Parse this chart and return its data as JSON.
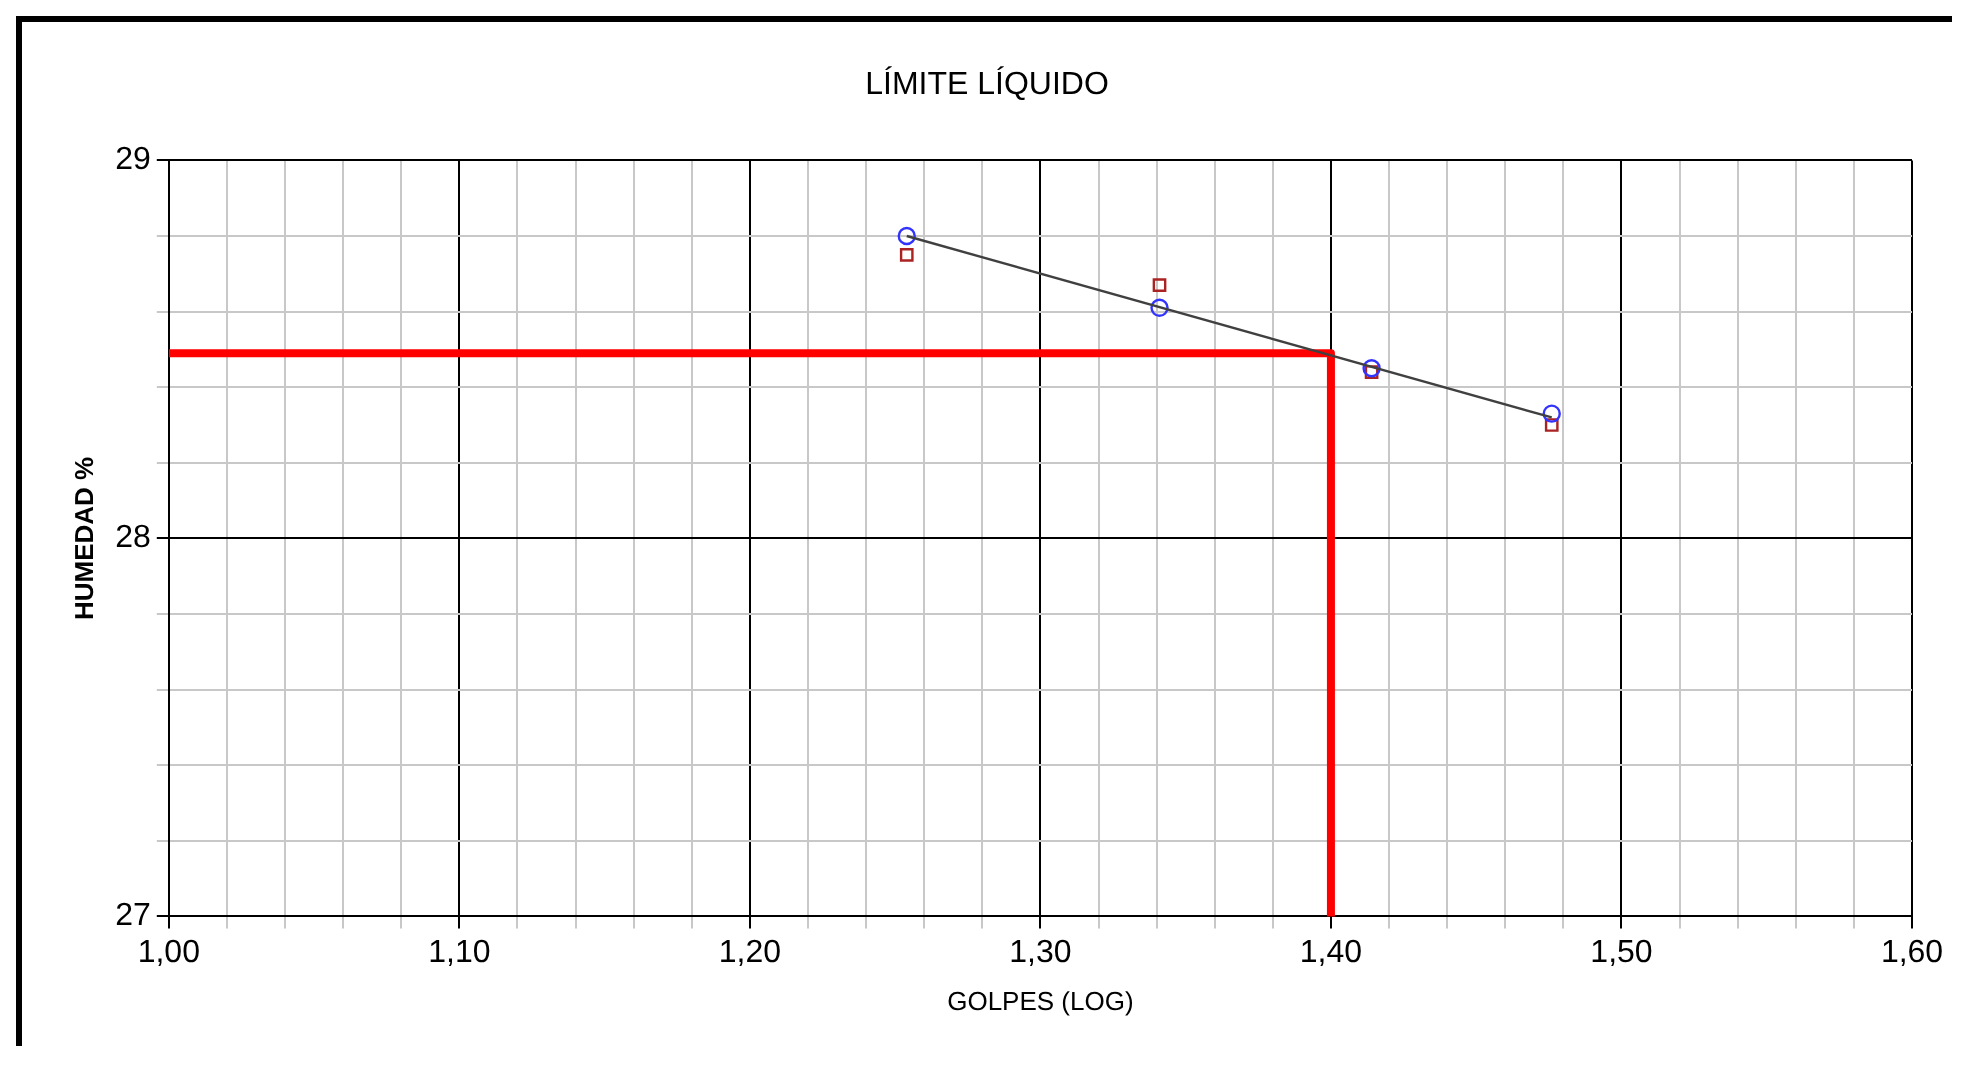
{
  "chart_data": {
    "type": "scatter",
    "title": "LÍMITE LÍQUIDO",
    "xlabel": "GOLPES (LOG)",
    "ylabel": "HUMEDAD %",
    "xlim": [
      1.0,
      1.6
    ],
    "xticks": [
      {
        "value": 1.0,
        "label": "1,00"
      },
      {
        "value": 1.02,
        "label": null
      },
      {
        "value": 1.04,
        "label": null
      },
      {
        "value": 1.06,
        "label": null
      },
      {
        "value": 1.08,
        "label": null
      },
      {
        "value": 1.1,
        "label": "1,10"
      },
      {
        "value": 1.12,
        "label": null
      },
      {
        "value": 1.14,
        "label": null
      },
      {
        "value": 1.16,
        "label": null
      },
      {
        "value": 1.18,
        "label": null
      },
      {
        "value": 1.2,
        "label": "1,20"
      },
      {
        "value": 1.22,
        "label": null
      },
      {
        "value": 1.24,
        "label": null
      },
      {
        "value": 1.26,
        "label": null
      },
      {
        "value": 1.28,
        "label": null
      },
      {
        "value": 1.3,
        "label": "1,30"
      },
      {
        "value": 1.32,
        "label": null
      },
      {
        "value": 1.34,
        "label": null
      },
      {
        "value": 1.36,
        "label": null
      },
      {
        "value": 1.38,
        "label": null
      },
      {
        "value": 1.4,
        "label": "1,40"
      },
      {
        "value": 1.42,
        "label": null
      },
      {
        "value": 1.44,
        "label": null
      },
      {
        "value": 1.46,
        "label": null
      },
      {
        "value": 1.48,
        "label": null
      },
      {
        "value": 1.5,
        "label": "1,50"
      },
      {
        "value": 1.52,
        "label": null
      },
      {
        "value": 1.54,
        "label": null
      },
      {
        "value": 1.56,
        "label": null
      },
      {
        "value": 1.58,
        "label": null
      },
      {
        "value": 1.6,
        "label": "1,60"
      }
    ],
    "ylim": [
      27,
      29
    ],
    "yticks": [
      27,
      {
        "value": 27.2,
        "label": null
      },
      {
        "value": 27.4,
        "label": null
      },
      {
        "value": 27.6,
        "label": null
      },
      {
        "value": 27.8,
        "label": null
      },
      28,
      {
        "value": 28.2,
        "label": null
      },
      {
        "value": 28.4,
        "label": null
      },
      {
        "value": 28.6,
        "label": null
      },
      {
        "value": 28.8,
        "label": null
      },
      29
    ],
    "grid": true,
    "legend": false,
    "series": [
      {
        "type": "line",
        "color": "#404040",
        "marker": "none",
        "x": [
          1.254,
          1.476
        ],
        "values": [
          28.8,
          28.32
        ]
      },
      {
        "type": "line",
        "color": "#ff0000",
        "marker": "none",
        "x": [
          1.0,
          1.4,
          1.4
        ],
        "values": [
          28.49,
          28.49,
          27
        ]
      },
      {
        "type": "scatter",
        "color": "#3333ff",
        "marker": "circle",
        "x": [
          1.254,
          1.341,
          1.414,
          1.476
        ],
        "values": [
          28.8,
          28.61,
          28.45,
          28.33
        ]
      },
      {
        "type": "scatter",
        "color": "#aa2222",
        "marker": "square",
        "x": [
          1.254,
          1.341,
          1.414,
          1.476
        ],
        "values": [
          28.75,
          28.67,
          28.44,
          28.3
        ]
      }
    ]
  }
}
